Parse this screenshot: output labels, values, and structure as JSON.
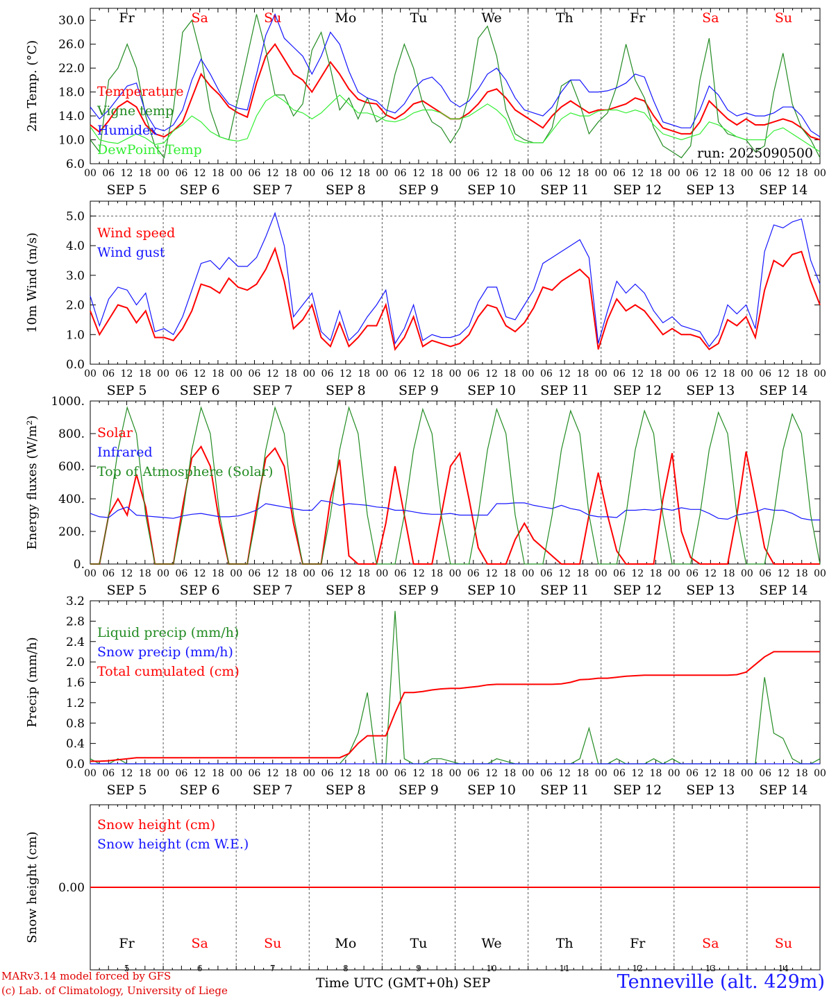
{
  "days": [
    "Fr",
    "Sa",
    "Su",
    "Mo",
    "Tu",
    "We",
    "Th",
    "Fr",
    "Sa",
    "Su"
  ],
  "weekend_days": [
    "Sa",
    "Su"
  ],
  "hour_ticks": [
    "00",
    "06",
    "12",
    "18"
  ],
  "date_labels": [
    "SEP  5",
    "SEP  6",
    "SEP  7",
    "SEP  8",
    "SEP  9",
    "SEP 10",
    "SEP 11",
    "SEP 12",
    "SEP 13",
    "SEP 14"
  ],
  "bottom_day_numbers": [
    "5",
    "6",
    "7",
    "8",
    "9",
    "10",
    "11",
    "12",
    "13",
    "14"
  ],
  "footer": {
    "model": "MARv3.14 model forced by GFS",
    "lab": "(c) Lab. of Climatology, University of Liege",
    "xlabel": "Time UTC (GMT+0h) SEP",
    "station": "Tenneville (alt. 429m)"
  },
  "colors": {
    "red": "#ff0000",
    "green": "#228b22",
    "blue": "#1515ff",
    "lightgreen": "#33ee33",
    "weekend": "#ff0000"
  },
  "chart_data": [
    {
      "id": "temp",
      "type": "line",
      "ylabel": "2m Temp. (°C)",
      "yticks": [
        "6.0",
        "10.0",
        "14.0",
        "18.0",
        "22.0",
        "26.0",
        "30.0"
      ],
      "ylim": [
        6,
        32
      ],
      "annotation": "run: 2025090500",
      "show_days": true,
      "series": [
        {
          "name": "Temperature",
          "color": "red",
          "values": [
            12.5,
            11.3,
            13.2,
            15.5,
            16.5,
            15.5,
            12.5,
            11,
            10.5,
            11.5,
            13,
            17,
            21,
            19,
            17.5,
            15.5,
            14.5,
            13.8,
            19.5,
            24,
            26,
            23.5,
            21,
            20,
            18,
            20.5,
            23,
            21,
            18.5,
            16.8,
            16.2,
            16,
            14.2,
            13.5,
            14.5,
            16,
            16.5,
            15.5,
            14.5,
            13.5,
            13.5,
            14.5,
            16,
            18,
            18.5,
            17,
            15,
            14,
            13,
            12,
            14,
            15.5,
            16.5,
            15.5,
            14.5,
            15,
            15,
            15.5,
            16,
            17,
            16.5,
            14,
            12,
            11.5,
            11,
            11,
            13,
            16.5,
            15,
            13.5,
            12.5,
            13.5,
            12.5,
            12.5,
            13,
            13.5,
            13,
            12,
            10.5,
            10
          ]
        },
        {
          "name": "Vigne temp",
          "color": "green",
          "values": [
            10,
            8,
            20,
            22,
            26,
            22,
            14,
            9,
            7,
            15,
            28,
            30,
            24,
            15,
            10.5,
            10,
            17,
            24,
            31,
            25,
            17.5,
            17.5,
            14,
            16,
            25,
            28,
            22,
            15,
            17,
            13.5,
            17,
            13,
            14,
            21,
            26,
            22,
            16,
            13,
            12,
            9.5,
            12,
            17.5,
            27,
            29,
            24,
            15,
            11,
            10,
            9.5,
            9.5,
            12,
            19,
            20,
            16,
            11,
            13,
            14.5,
            19,
            26,
            20,
            17,
            12,
            9,
            8,
            7,
            9,
            20,
            27,
            13,
            11,
            10.5,
            10,
            8,
            9,
            18,
            24.5,
            16,
            12,
            10,
            7
          ]
        },
        {
          "name": "Humidex",
          "color": "blue",
          "values": [
            15.5,
            13.5,
            15,
            17,
            19,
            19.5,
            14.5,
            12,
            11.5,
            12.5,
            15,
            20,
            23.5,
            21,
            18,
            16,
            15.3,
            15,
            21,
            27.5,
            31,
            27,
            25.5,
            24,
            21,
            24,
            28,
            26,
            21.5,
            18,
            17,
            16.5,
            15,
            14.5,
            16,
            18.5,
            20,
            20.5,
            19,
            16.5,
            15.5,
            16.5,
            18.5,
            21,
            22,
            20,
            17,
            15,
            14.5,
            14,
            15.5,
            18,
            20,
            20,
            18,
            18,
            18.2,
            18.7,
            19.5,
            21,
            20.5,
            16.5,
            13,
            12.5,
            12,
            12,
            15,
            19,
            17.5,
            15,
            14,
            14.5,
            14,
            14,
            14.5,
            15.5,
            15.5,
            14,
            11.5,
            10.5
          ]
        },
        {
          "name": "DewPoint Temp",
          "color": "lightgreen",
          "values": [
            12.2,
            10,
            9.6,
            9.4,
            10.2,
            11,
            10.3,
            9.2,
            9.5,
            11.5,
            12.5,
            14,
            13,
            11.4,
            10.5,
            10,
            9.8,
            10.2,
            14,
            16.5,
            17.5,
            16.5,
            15,
            14.5,
            13.5,
            14.5,
            16,
            17.5,
            16,
            14.5,
            14.5,
            14,
            13.2,
            13,
            13.5,
            14.5,
            15,
            15,
            14.5,
            13.5,
            13.5,
            14,
            15,
            16,
            15,
            13.5,
            10,
            9.5,
            9.5,
            9.5,
            11.5,
            13.5,
            14.5,
            14,
            14,
            14.8,
            15,
            15,
            14.5,
            15,
            14.5,
            12.5,
            11,
            10.5,
            10,
            10.5,
            11,
            13,
            12.5,
            11.5,
            10.5,
            10,
            10,
            10,
            11.5,
            12,
            11,
            10,
            9,
            8
          ]
        }
      ]
    },
    {
      "id": "wind",
      "type": "line",
      "ylabel": "10m Wind (m/s)",
      "yticks": [
        "0.0",
        "1.0",
        "2.0",
        "3.0",
        "4.0",
        "5.0"
      ],
      "ylim": [
        0,
        5.5
      ],
      "ref_line": 5.0,
      "series": [
        {
          "name": "Wind speed",
          "color": "red",
          "values": [
            1.8,
            1.0,
            1.5,
            2.0,
            1.9,
            1.4,
            1.8,
            0.9,
            0.9,
            0.8,
            1.2,
            1.8,
            2.7,
            2.6,
            2.4,
            2.9,
            2.6,
            2.5,
            2.7,
            3.2,
            3.9,
            2.8,
            1.2,
            1.5,
            2.0,
            0.9,
            0.6,
            1.4,
            0.6,
            0.9,
            1.3,
            1.3,
            2.0,
            0.5,
            0.9,
            1.6,
            0.6,
            0.8,
            0.7,
            0.6,
            0.7,
            1.0,
            1.6,
            2.0,
            1.9,
            1.3,
            1.1,
            1.4,
            1.9,
            2.6,
            2.5,
            2.8,
            3.0,
            3.2,
            2.9,
            0.5,
            1.5,
            2.2,
            1.8,
            2.0,
            1.8,
            1.4,
            1.0,
            1.2,
            1.0,
            1.0,
            0.9,
            0.5,
            0.7,
            1.5,
            1.3,
            1.6,
            0.9,
            2.5,
            3.5,
            3.3,
            3.7,
            3.8,
            2.8,
            2.0
          ]
        },
        {
          "name": "Wind gust",
          "color": "blue",
          "values": [
            2.3,
            1.3,
            2.2,
            2.6,
            2.5,
            2.0,
            2.4,
            1.1,
            1.2,
            1.0,
            1.6,
            2.5,
            3.4,
            3.5,
            3.2,
            3.6,
            3.3,
            3.3,
            3.6,
            4.3,
            5.1,
            4.0,
            1.6,
            2.0,
            2.4,
            1.1,
            0.8,
            1.8,
            0.8,
            1.1,
            1.6,
            2.0,
            2.5,
            0.7,
            1.2,
            2.0,
            0.8,
            1.0,
            0.9,
            0.9,
            1.0,
            1.3,
            2.1,
            2.6,
            2.6,
            1.6,
            1.5,
            2.0,
            2.5,
            3.4,
            3.6,
            3.8,
            4.0,
            4.2,
            3.6,
            0.7,
            1.8,
            2.8,
            2.4,
            2.7,
            2.4,
            1.8,
            1.4,
            1.6,
            1.3,
            1.2,
            1.1,
            0.6,
            1.0,
            2.0,
            1.7,
            2.0,
            1.2,
            3.8,
            4.7,
            4.6,
            4.8,
            4.9,
            3.5,
            2.7
          ]
        }
      ]
    },
    {
      "id": "flux",
      "type": "line",
      "ylabel": "Energy fluxes (W/m²)",
      "yticks": [
        "0.",
        "200.",
        "400.",
        "600.",
        "800.",
        "1000."
      ],
      "ylim": [
        0,
        1000
      ],
      "series": [
        {
          "name": "Solar",
          "color": "red",
          "values": [
            0,
            0,
            300,
            400,
            300,
            550,
            350,
            0,
            0,
            0,
            350,
            650,
            720,
            600,
            250,
            0,
            0,
            0,
            350,
            650,
            710,
            600,
            250,
            0,
            0,
            0,
            400,
            640,
            50,
            0,
            0,
            0,
            250,
            600,
            300,
            0,
            0,
            0,
            300,
            600,
            680,
            400,
            100,
            0,
            0,
            0,
            150,
            250,
            150,
            100,
            50,
            0,
            0,
            0,
            300,
            560,
            300,
            80,
            0,
            0,
            0,
            0,
            400,
            680,
            200,
            40,
            0,
            0,
            0,
            0,
            300,
            690,
            400,
            100,
            0,
            0,
            0,
            0,
            0,
            0
          ]
        },
        {
          "name": "Infrared",
          "color": "blue",
          "values": [
            310,
            290,
            285,
            330,
            350,
            300,
            295,
            290,
            285,
            280,
            295,
            305,
            310,
            300,
            290,
            290,
            295,
            310,
            330,
            370,
            360,
            350,
            340,
            330,
            330,
            390,
            380,
            360,
            370,
            365,
            360,
            350,
            345,
            330,
            330,
            320,
            310,
            305,
            305,
            310,
            300,
            300,
            300,
            300,
            370,
            370,
            375,
            375,
            360,
            350,
            340,
            360,
            340,
            330,
            300,
            290,
            290,
            285,
            330,
            330,
            335,
            330,
            340,
            330,
            345,
            335,
            335,
            310,
            280,
            275,
            300,
            310,
            320,
            340,
            330,
            330,
            310,
            280,
            270,
            270
          ]
        },
        {
          "name": "Top of Atmosphere (Solar)",
          "color": "green",
          "values": [
            0,
            0,
            300,
            700,
            960,
            800,
            300,
            0,
            0,
            0,
            300,
            700,
            960,
            800,
            300,
            0,
            0,
            0,
            300,
            700,
            960,
            800,
            300,
            0,
            0,
            0,
            300,
            700,
            960,
            800,
            300,
            0,
            0,
            0,
            300,
            700,
            950,
            800,
            300,
            0,
            0,
            0,
            300,
            700,
            950,
            800,
            300,
            0,
            0,
            0,
            300,
            700,
            940,
            800,
            300,
            0,
            0,
            0,
            300,
            700,
            940,
            800,
            300,
            0,
            0,
            0,
            300,
            700,
            930,
            800,
            300,
            0,
            0,
            0,
            300,
            700,
            920,
            800,
            300,
            0
          ]
        }
      ]
    },
    {
      "id": "precip",
      "type": "line",
      "ylabel": "Precip (mm/h)",
      "yticks": [
        "0.0",
        "0.4",
        "0.8",
        "1.2",
        "1.6",
        "2.0",
        "2.4",
        "2.8",
        "3.2"
      ],
      "ylim": [
        0,
        3.2
      ],
      "series": [
        {
          "name": "Liquid precip (mm/h)",
          "color": "green",
          "values": [
            0.1,
            0,
            0,
            0.1,
            0,
            0,
            0,
            0,
            0,
            0,
            0,
            0,
            0,
            0,
            0,
            0,
            0,
            0,
            0,
            0,
            0,
            0,
            0,
            0,
            0,
            0,
            0,
            0,
            0.2,
            0.6,
            1.4,
            0,
            0,
            3.0,
            0.1,
            0,
            0,
            0.1,
            0.1,
            0.05,
            0,
            0,
            0,
            0,
            0.1,
            0.05,
            0,
            0,
            0,
            0,
            0,
            0,
            0,
            0.1,
            0.7,
            0,
            0,
            0.1,
            0,
            0,
            0,
            0.1,
            0,
            0.1,
            0,
            0,
            0,
            0,
            0,
            0,
            0,
            0,
            0,
            1.7,
            0.6,
            0.5,
            0.1,
            0,
            0,
            0.1
          ]
        },
        {
          "name": "Snow precip (mm/h)",
          "color": "blue",
          "values": [
            0,
            0,
            0,
            0,
            0,
            0,
            0,
            0,
            0,
            0,
            0,
            0,
            0,
            0,
            0,
            0,
            0,
            0,
            0,
            0,
            0,
            0,
            0,
            0,
            0,
            0,
            0,
            0,
            0,
            0,
            0,
            0,
            0,
            0,
            0,
            0,
            0,
            0,
            0,
            0,
            0,
            0,
            0,
            0,
            0,
            0,
            0,
            0,
            0,
            0,
            0,
            0,
            0,
            0,
            0,
            0,
            0,
            0,
            0,
            0,
            0,
            0,
            0,
            0,
            0,
            0,
            0,
            0,
            0,
            0,
            0,
            0,
            0,
            0,
            0,
            0,
            0,
            0,
            0,
            0
          ]
        },
        {
          "name": "Total cumulated (cm)",
          "color": "red",
          "values": [
            0.05,
            0.05,
            0.06,
            0.08,
            0.1,
            0.12,
            0.12,
            0.12,
            0.12,
            0.12,
            0.12,
            0.12,
            0.12,
            0.12,
            0.12,
            0.12,
            0.12,
            0.12,
            0.12,
            0.12,
            0.12,
            0.12,
            0.12,
            0.12,
            0.12,
            0.12,
            0.12,
            0.12,
            0.2,
            0.4,
            0.55,
            0.55,
            0.55,
            1.0,
            1.4,
            1.4,
            1.42,
            1.45,
            1.47,
            1.48,
            1.48,
            1.5,
            1.52,
            1.55,
            1.56,
            1.56,
            1.56,
            1.56,
            1.56,
            1.56,
            1.56,
            1.57,
            1.6,
            1.65,
            1.66,
            1.68,
            1.68,
            1.7,
            1.72,
            1.73,
            1.74,
            1.74,
            1.74,
            1.74,
            1.74,
            1.74,
            1.74,
            1.74,
            1.74,
            1.74,
            1.75,
            1.8,
            1.95,
            2.1,
            2.2,
            2.2,
            2.2,
            2.2,
            2.2,
            2.2
          ]
        }
      ]
    },
    {
      "id": "snow",
      "type": "line",
      "ylabel": "Snow height (cm)",
      "yticks": [
        "0.00"
      ],
      "ylim": [
        -1,
        1
      ],
      "series": [
        {
          "name": "Snow height (cm)",
          "color": "red",
          "values": [
            0,
            0
          ]
        },
        {
          "name": "Snow height (cm W.E.)",
          "color": "blue",
          "values": []
        }
      ]
    }
  ]
}
